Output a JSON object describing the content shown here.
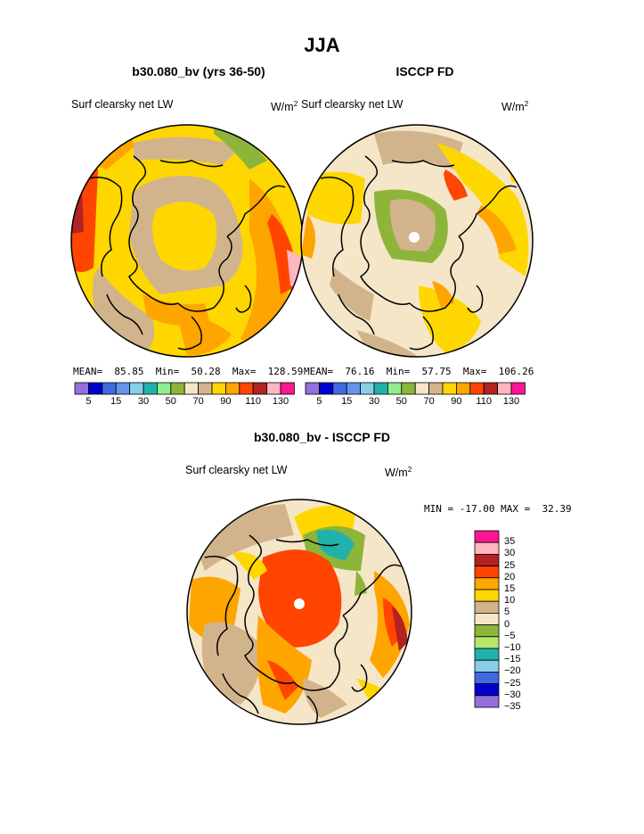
{
  "page": {
    "title": "JJA"
  },
  "maps": [
    {
      "id": "model",
      "subtitle": "b30.080_bv (yrs 36-50)",
      "variable": "Surf clearsky net LW",
      "units_base": "W/m",
      "units_exp": "2",
      "stats": {
        "mean_label": "MEAN=",
        "mean": "85.85",
        "min_label": "Min=",
        "min": "50.28",
        "max_label": "Max=",
        "max": "128.59"
      }
    },
    {
      "id": "obs",
      "subtitle": "ISCCP FD",
      "variable": "Surf clearsky net LW",
      "units_base": "W/m",
      "units_exp": "2",
      "stats": {
        "mean_label": "MEAN=",
        "mean": "76.16",
        "min_label": "Min=",
        "min": "57.75",
        "max_label": "Max=",
        "max": "106.26"
      }
    }
  ],
  "abs_colorbar": {
    "colors": [
      "#9370DB",
      "#0000CD",
      "#4169E1",
      "#6495ED",
      "#87CEEB",
      "#20B2AA",
      "#90EE90",
      "#8DB53A",
      "#F5E6C8",
      "#D2B48C",
      "#FFD700",
      "#FFA500",
      "#FF4500",
      "#B22222",
      "#FFB6C1",
      "#FF1493"
    ],
    "tick_labels": [
      "5",
      "15",
      "30",
      "50",
      "70",
      "90",
      "110",
      "130"
    ]
  },
  "diff_map": {
    "subtitle": "b30.080_bv - ISCCP FD",
    "variable": "Surf clearsky net LW",
    "units_base": "W/m",
    "units_exp": "2",
    "min_label": "MIN =",
    "min": "-17.00",
    "max_label": "MAX =",
    "max": "32.39"
  },
  "diff_colorbar": {
    "colors_top_to_bottom": [
      "#FF1493",
      "#FFB6C1",
      "#B22222",
      "#FF4500",
      "#FFA500",
      "#FFD700",
      "#D2B48C",
      "#F5E6C8",
      "#8DB53A",
      "#B5E86B",
      "#20B2AA",
      "#87CEEB",
      "#4169E1",
      "#0000CD",
      "#9370DB"
    ],
    "tick_labels": [
      "35",
      "30",
      "25",
      "20",
      "15",
      "10",
      "5",
      "0",
      "−5",
      "−10",
      "−15",
      "−20",
      "−25",
      "−30",
      "−35"
    ]
  }
}
